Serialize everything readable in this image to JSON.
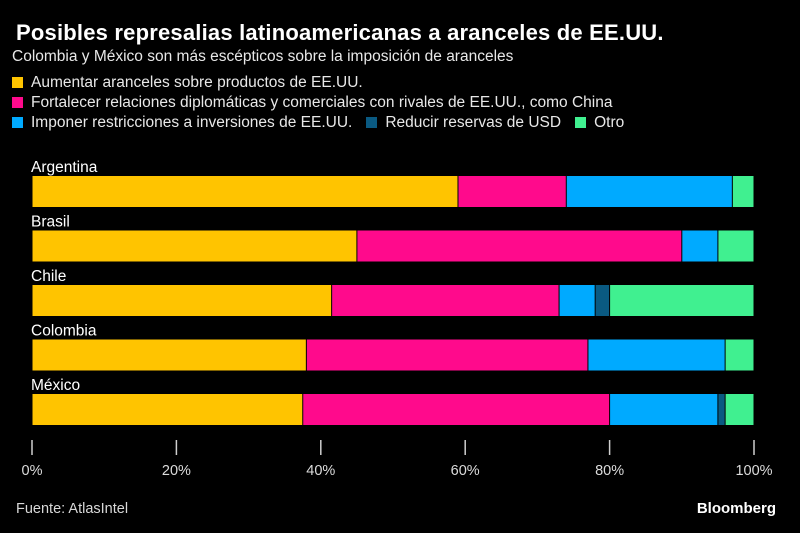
{
  "header": {
    "title": "Posibles represalias latinoamericanas a aranceles de EE.UU.",
    "subtitle": "Colombia y México son más escépticos sobre la imposición de aranceles"
  },
  "footer": {
    "source": "Fuente: AtlasIntel",
    "brand": "Bloomberg"
  },
  "chart_data": {
    "type": "bar",
    "orientation": "horizontal",
    "stacked": true,
    "title": "Posibles represalias latinoamericanas a aranceles de EE.UU.",
    "subtitle": "Colombia y México son más escépticos sobre la imposición de aranceles",
    "xlabel": "",
    "ylabel": "",
    "xlim": [
      0,
      100
    ],
    "x_ticks": [
      "0%",
      "20%",
      "40%",
      "60%",
      "80%",
      "100%"
    ],
    "x_tick_values": [
      0,
      20,
      40,
      60,
      80,
      100
    ],
    "grid": false,
    "legend_position": "top",
    "categories": [
      "Argentina",
      "Brasil",
      "Chile",
      "Colombia",
      "México"
    ],
    "series": [
      {
        "name": "Aumentar aranceles sobre productos de EE.UU.",
        "color": "#FFC400",
        "values": [
          59,
          45,
          41.5,
          38,
          37.5
        ]
      },
      {
        "name": "Fortalecer relaciones diplomáticas y comerciales con rivales de EE.UU., como China",
        "color": "#FF0A8C",
        "values": [
          15,
          45,
          31.5,
          39,
          42.5
        ]
      },
      {
        "name": "Imponer restricciones a inversiones de EE.UU.",
        "color": "#00AAFF",
        "values": [
          23,
          5,
          5,
          19,
          15
        ]
      },
      {
        "name": "Reducir reservas de USD",
        "color": "#0A5A82",
        "values": [
          0,
          0,
          2,
          0,
          1
        ]
      },
      {
        "name": "Otro",
        "color": "#40F090",
        "values": [
          3,
          5,
          20,
          4,
          4
        ]
      }
    ],
    "source": "Fuente: AtlasIntel"
  }
}
